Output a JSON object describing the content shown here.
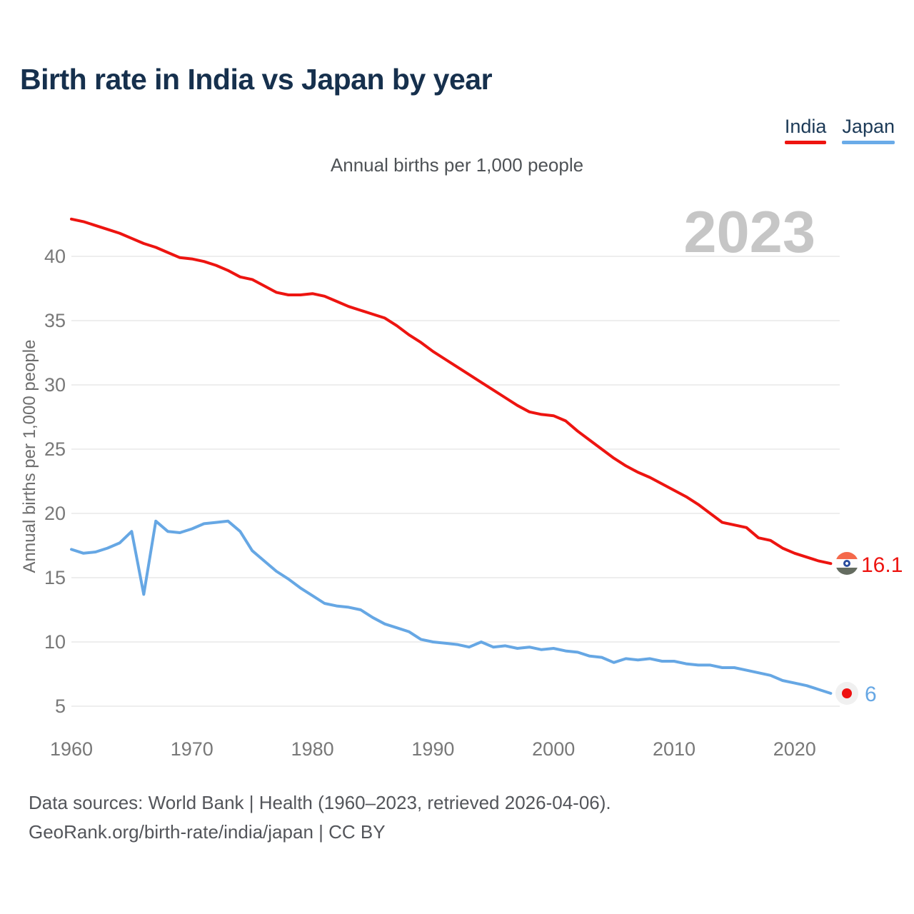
{
  "header": {
    "title": "Birth rate in India vs Japan by year"
  },
  "subtitle": "Annual births per 1,000 people",
  "watermark": "2023",
  "legend": {
    "items": [
      {
        "label": "India",
        "color": "#ee1410"
      },
      {
        "label": "Japan",
        "color": "#6aabe8"
      }
    ]
  },
  "chart_data": {
    "type": "line",
    "title": "Birth rate in India vs Japan by year",
    "subtitle": "Annual births per 1,000 people",
    "xlabel": "",
    "ylabel": "Annual births per 1,000 people",
    "ylim": [
      5,
      40
    ],
    "yticks": [
      5,
      10,
      15,
      20,
      25,
      30,
      35,
      40
    ],
    "xticks": [
      1960,
      1970,
      1980,
      1990,
      2000,
      2010,
      2020
    ],
    "grid": "horizontal",
    "legend_position": "top-right",
    "years": [
      1960,
      1961,
      1962,
      1963,
      1964,
      1965,
      1966,
      1967,
      1968,
      1969,
      1970,
      1971,
      1972,
      1973,
      1974,
      1975,
      1976,
      1977,
      1978,
      1979,
      1980,
      1981,
      1982,
      1983,
      1984,
      1985,
      1986,
      1987,
      1988,
      1989,
      1990,
      1991,
      1992,
      1993,
      1994,
      1995,
      1996,
      1997,
      1998,
      1999,
      2000,
      2001,
      2002,
      2003,
      2004,
      2005,
      2006,
      2007,
      2008,
      2009,
      2010,
      2011,
      2012,
      2013,
      2014,
      2015,
      2016,
      2017,
      2018,
      2019,
      2020,
      2021,
      2022,
      2023
    ],
    "series": [
      {
        "name": "India",
        "color": "#ed1410",
        "final_value": 16.1,
        "values": [
          42.9,
          42.7,
          42.4,
          42.1,
          41.8,
          41.4,
          41.0,
          40.7,
          40.3,
          39.9,
          39.8,
          39.6,
          39.3,
          38.9,
          38.4,
          38.2,
          37.7,
          37.2,
          37.0,
          37.0,
          37.1,
          36.9,
          36.5,
          36.1,
          35.8,
          35.5,
          35.2,
          34.6,
          33.9,
          33.3,
          32.6,
          32.0,
          31.4,
          30.8,
          30.2,
          29.6,
          29.0,
          28.4,
          27.9,
          27.7,
          27.6,
          27.2,
          26.4,
          25.7,
          25.0,
          24.3,
          23.7,
          23.2,
          22.8,
          22.3,
          21.8,
          21.3,
          20.7,
          20.0,
          19.3,
          19.1,
          18.9,
          18.1,
          17.9,
          17.3,
          16.9,
          16.6,
          16.3,
          16.1
        ]
      },
      {
        "name": "Japan",
        "color": "#66a7e4",
        "final_value": 6,
        "values": [
          17.2,
          16.9,
          17.0,
          17.3,
          17.7,
          18.6,
          13.7,
          19.4,
          18.6,
          18.5,
          18.8,
          19.2,
          19.3,
          19.4,
          18.6,
          17.1,
          16.3,
          15.5,
          14.9,
          14.2,
          13.6,
          13.0,
          12.8,
          12.7,
          12.5,
          11.9,
          11.4,
          11.1,
          10.8,
          10.2,
          10.0,
          9.9,
          9.8,
          9.6,
          10.0,
          9.6,
          9.7,
          9.5,
          9.6,
          9.4,
          9.5,
          9.3,
          9.2,
          8.9,
          8.8,
          8.4,
          8.7,
          8.6,
          8.7,
          8.5,
          8.5,
          8.3,
          8.2,
          8.2,
          8.0,
          8.0,
          7.8,
          7.6,
          7.4,
          7.0,
          6.8,
          6.6,
          6.3,
          6.0
        ]
      }
    ],
    "end_labels": [
      {
        "series": "India",
        "label": "16.1",
        "flag_icon": "india-flag-icon",
        "color": "#ed1410"
      },
      {
        "series": "Japan",
        "label": "6",
        "flag_icon": "japan-flag-icon",
        "color": "#66a7e4"
      }
    ]
  },
  "footer": {
    "line1": "Data sources: World Bank | Health (1960–2023, retrieved 2026-04-06).",
    "line2": "GeoRank.org/birth-rate/india/japan | CC BY"
  }
}
